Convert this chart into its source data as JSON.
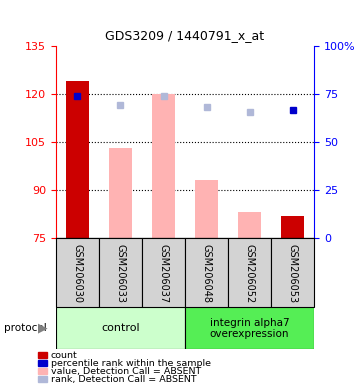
{
  "title": "GDS3209 / 1440791_x_at",
  "samples": [
    "GSM206030",
    "GSM206033",
    "GSM206037",
    "GSM206048",
    "GSM206052",
    "GSM206053"
  ],
  "ylim_left": [
    75,
    135
  ],
  "yticks_left": [
    75,
    90,
    105,
    120,
    135
  ],
  "ytick_labels_right": [
    "0",
    "25",
    "50",
    "75",
    "100%"
  ],
  "bar_values": [
    124,
    103,
    120,
    93,
    83,
    82
  ],
  "bar_is_present": [
    true,
    false,
    false,
    false,
    false,
    true
  ],
  "bar_color_present": "#cc0000",
  "bar_color_absent": "#ffb3b3",
  "rank_dots": [
    119.5,
    116.5,
    119.5,
    116.0,
    114.5,
    115.0
  ],
  "rank_dot_is_present": [
    true,
    false,
    false,
    false,
    false,
    true
  ],
  "rank_dot_color_present": "#0000cc",
  "rank_dot_color_absent": "#b0b8d8",
  "base_value": 75,
  "control_label": "control",
  "overexpression_label": "integrin alpha7\noverexpression",
  "control_color": "#ccffcc",
  "overexpression_color": "#55ee55",
  "protocol_label": "protocol",
  "legend_items": [
    {
      "color": "#cc0000",
      "label": "count"
    },
    {
      "color": "#0000cc",
      "label": "percentile rank within the sample"
    },
    {
      "color": "#ffb3b3",
      "label": "value, Detection Call = ABSENT"
    },
    {
      "color": "#b0b8d8",
      "label": "rank, Detection Call = ABSENT"
    }
  ],
  "bar_width": 0.55,
  "sample_box_color": "#d3d3d3",
  "figsize": [
    3.61,
    3.84
  ],
  "dpi": 100
}
